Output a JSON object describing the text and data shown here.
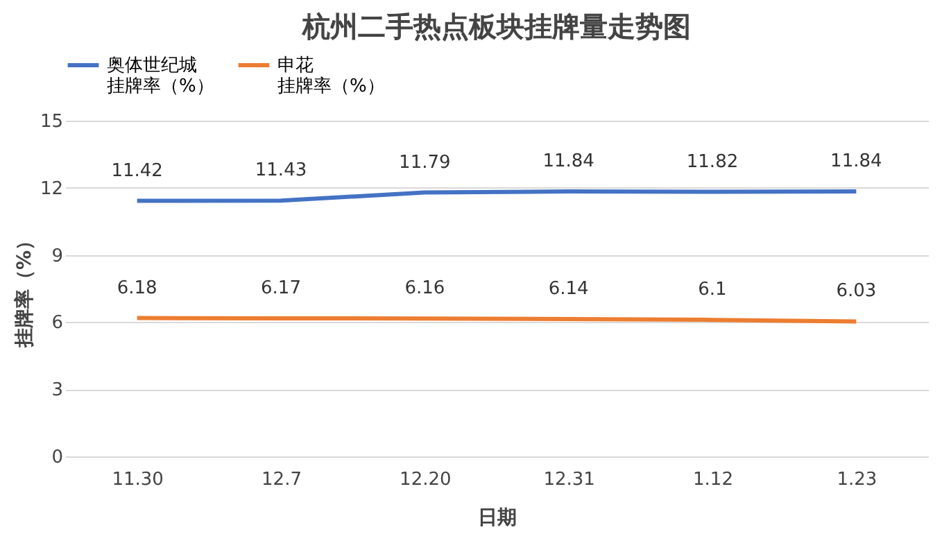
{
  "chart_data": {
    "type": "line",
    "title": "杭州二手热点板块挂牌量走势图",
    "xlabel": "日期",
    "ylabel": "挂牌率（%）",
    "categories": [
      "11.30",
      "12.7",
      "12.20",
      "12.31",
      "1.12",
      "1.23"
    ],
    "series": [
      {
        "name": "奥体世纪城挂牌率（%）",
        "color": "#4472c4",
        "values": [
          11.42,
          11.43,
          11.79,
          11.84,
          11.82,
          11.84
        ]
      },
      {
        "name": "申花挂牌率（%）",
        "color": "#ed7d31",
        "values": [
          6.18,
          6.17,
          6.16,
          6.14,
          6.1,
          6.03
        ]
      }
    ],
    "ylim": [
      0,
      15
    ],
    "yticks": [
      0,
      3,
      6,
      9,
      12,
      15
    ],
    "grid": "y",
    "legend": "top",
    "data_labels": true,
    "marker": "none",
    "line_style": "solid"
  }
}
